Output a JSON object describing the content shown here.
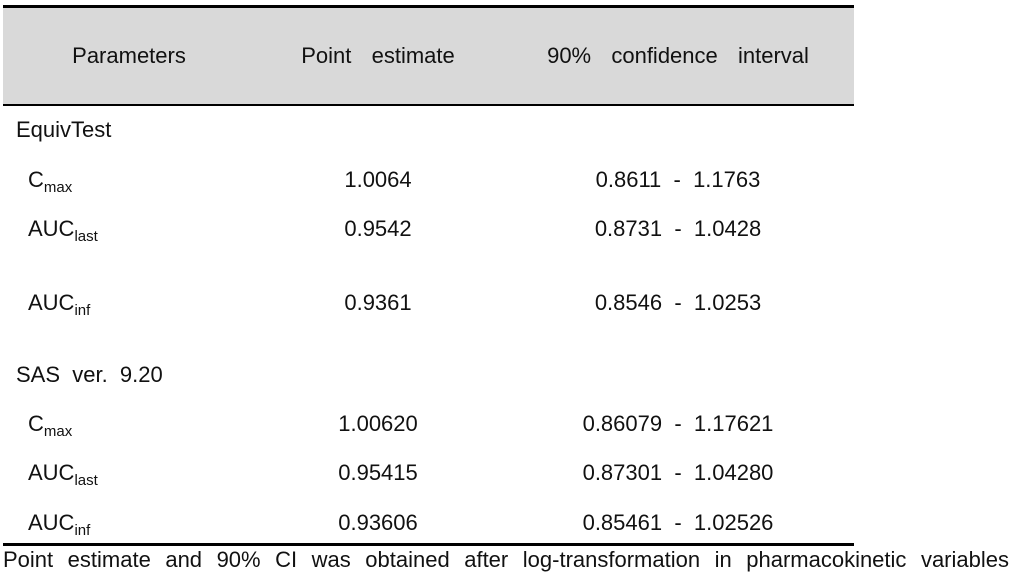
{
  "table": {
    "headers": {
      "parameters": "Parameters",
      "point_estimate": "Point  estimate",
      "ci": "90%  confidence  interval"
    },
    "sections": [
      {
        "title": "EquivTest",
        "rows": [
          {
            "param_base": "C",
            "param_sub": "max",
            "point": "1.0064",
            "ci": "0.8611  -  1.1763"
          },
          {
            "param_base": "AUC",
            "param_sub": "last",
            "point": "0.9542",
            "ci": "0.8731  -  1.0428"
          },
          {
            "param_base": "AUC",
            "param_sub": "inf",
            "point": "0.9361",
            "ci": "0.8546  -  1.0253"
          }
        ]
      },
      {
        "title": "SAS  ver.  9.20",
        "rows": [
          {
            "param_base": "C",
            "param_sub": "max",
            "point": "1.00620",
            "ci": "0.86079  -  1.17621"
          },
          {
            "param_base": "AUC",
            "param_sub": "last",
            "point": "0.95415",
            "ci": "0.87301  -  1.04280"
          },
          {
            "param_base": "AUC",
            "param_sub": "inf",
            "point": "0.93606",
            "ci": "0.85461  -  1.02526"
          }
        ]
      }
    ]
  },
  "footnote": "Point estimate and 90% CI was obtained after log-transformation in pharmacokinetic variables"
}
